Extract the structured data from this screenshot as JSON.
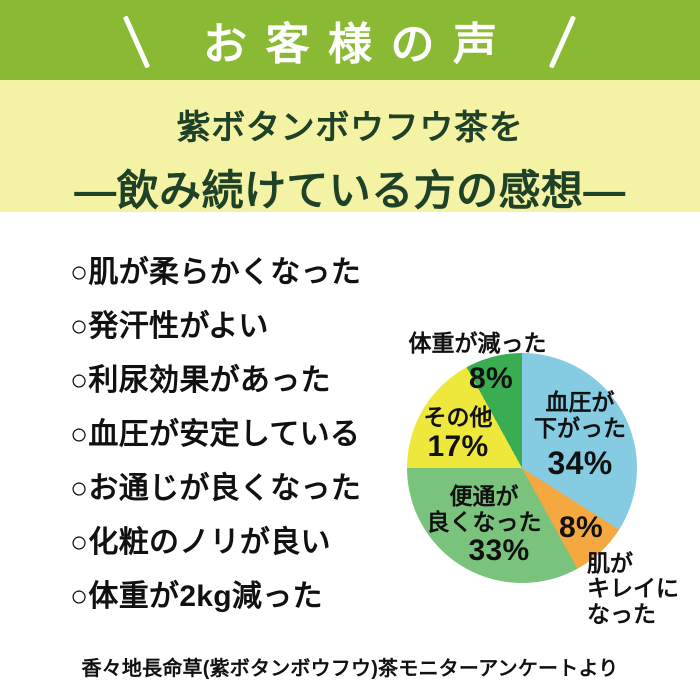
{
  "header": {
    "title": "お客様の声",
    "bg_color": "#8ABA33",
    "text_color": "#FFFFFF"
  },
  "subheader": {
    "line1": "紫ボタンボウフウ茶を",
    "line2": "―飲み続けている方の感想―",
    "bg_color": "#F4F2A4",
    "text_color": "#1E4128"
  },
  "benefits": {
    "items": [
      "○肌が柔らかくなった",
      "○発汗性がよい",
      "○利尿効果があった",
      "○血圧が安定している",
      "○お通じが良くなった",
      "○化粧のノリが良い",
      "○体重が2kg減った"
    ]
  },
  "chart_data": {
    "type": "pie",
    "title": "",
    "direction": "clockwise",
    "start_angle_deg": 0,
    "slices": [
      {
        "label": "血圧が下がった",
        "value": 34,
        "color": "#85CBE2"
      },
      {
        "label": "肌がキレイになった",
        "value": 8,
        "color": "#F4A83F"
      },
      {
        "label": "便通が良くなった",
        "value": 33,
        "color": "#79C37D"
      },
      {
        "label": "その他",
        "value": 17,
        "color": "#EEE83D"
      },
      {
        "label": "体重が減った",
        "value": 8,
        "color": "#3AAD52"
      }
    ],
    "labels": {
      "blue_name": "血圧が\n下がった",
      "blue_pct": "34%",
      "orange_pct": "8%",
      "orange_name": "肌が\nキレイに\nなった",
      "green_name": "便通が\n良くなった",
      "green_pct": "33%",
      "yellow_name": "その他",
      "yellow_pct": "17%",
      "darkgreen_pct": "8%",
      "darkgreen_name": "体重が減った"
    }
  },
  "footer": {
    "caption": "香々地長命草(紫ボタンボウフウ)茶モニターアンケートより"
  }
}
